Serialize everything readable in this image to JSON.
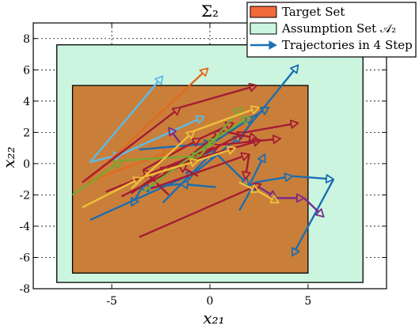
{
  "chart_data": {
    "type": "line",
    "title": "Σ₂",
    "xlabel": "x₂₁",
    "ylabel": "x₂₂",
    "xlim": [
      -9,
      9
    ],
    "ylim": [
      -8,
      9
    ],
    "xticks": [
      -5,
      0,
      5
    ],
    "yticks": [
      -8,
      -6,
      -4,
      -2,
      0,
      2,
      4,
      6,
      8
    ],
    "xtick_labels": [
      "-5",
      "0",
      "5"
    ],
    "ytick_labels": [
      "-8",
      "-6",
      "-4",
      "-2",
      "0",
      "2",
      "4",
      "6",
      "8"
    ],
    "grid": true,
    "legend_position": "top-right",
    "regions": [
      {
        "name": "Assumption Set 𝒜₂",
        "x": [
          -7.8,
          7.8
        ],
        "y": [
          -7.6,
          7.6
        ],
        "color": "#ccf5e0"
      },
      {
        "name": "Target Set",
        "x": [
          -7,
          5
        ],
        "y": [
          -7,
          5
        ],
        "color": "#c97f3a"
      }
    ],
    "legend": [
      {
        "label": "Target Set",
        "kind": "patch",
        "color": "#f2693a"
      },
      {
        "label": "Assumption Set 𝒜₂",
        "kind": "patch",
        "color": "#ccf5e0"
      },
      {
        "label": "Trajectories in 4 Step",
        "kind": "line",
        "color": "#1f6fb5"
      }
    ],
    "series": [
      {
        "color": "#5bbbe6",
        "points": [
          [
            -6.1,
            0.1
          ],
          [
            -2.4,
            5.6
          ]
        ]
      },
      {
        "color": "#5bbbe6",
        "points": [
          [
            -6.1,
            0.1
          ],
          [
            -4.5,
            0.6
          ],
          [
            -0.3,
            3.0
          ]
        ]
      },
      {
        "color": "#e06a1e",
        "points": [
          [
            -6.3,
            -1.2
          ],
          [
            -0.1,
            6.1
          ]
        ]
      },
      {
        "color": "#e06a1e",
        "points": [
          [
            -6.3,
            -1.2
          ],
          [
            -2.0,
            0.8
          ],
          [
            2.0,
            2.3
          ]
        ]
      },
      {
        "color": "#1a6eb0",
        "points": [
          [
            -6.1,
            -3.6
          ],
          [
            -0.8,
            -0.6
          ],
          [
            1.6,
            1.8
          ],
          [
            4.5,
            6.3
          ]
        ]
      },
      {
        "color": "#1a6eb0",
        "points": [
          [
            -3.6,
            0.9
          ],
          [
            0.1,
            1.3
          ],
          [
            2.2,
            3.0
          ],
          [
            3.0,
            3.6
          ]
        ]
      },
      {
        "color": "#1a6eb0",
        "points": [
          [
            -2.4,
            -2.5
          ],
          [
            0.2,
            0.8
          ],
          [
            2.0,
            -1.4
          ],
          [
            2.8,
            0.6
          ]
        ]
      },
      {
        "color": "#1a6eb0",
        "points": [
          [
            1.5,
            -3.0
          ],
          [
            2.3,
            -1.2
          ],
          [
            4.2,
            -0.8
          ],
          [
            6.3,
            -1.0
          ],
          [
            4.2,
            -5.9
          ]
        ]
      },
      {
        "color": "#1a6eb0",
        "points": [
          [
            0.3,
            -1.5
          ],
          [
            -1.5,
            -1.3
          ],
          [
            -3.5,
            -1.6
          ],
          [
            -4.0,
            -2.7
          ]
        ]
      },
      {
        "color": "#a51c35",
        "points": [
          [
            -3.6,
            -4.7
          ],
          [
            2.6,
            -1.3
          ]
        ]
      },
      {
        "color": "#a51c35",
        "points": [
          [
            -4.5,
            -2.1
          ],
          [
            1.8,
            2.0
          ],
          [
            4.5,
            2.6
          ]
        ]
      },
      {
        "color": "#a51c35",
        "points": [
          [
            -6.5,
            -1.2
          ],
          [
            -1.5,
            3.6
          ],
          [
            2.4,
            5.0
          ]
        ]
      },
      {
        "color": "#a51c35",
        "points": [
          [
            -5.3,
            -1.8
          ],
          [
            0.5,
            1.2
          ],
          [
            3.6,
            1.6
          ]
        ]
      },
      {
        "color": "#a51c35",
        "points": [
          [
            -3.0,
            -1.6
          ],
          [
            2.0,
            0.6
          ],
          [
            1.8,
            -1.0
          ]
        ]
      },
      {
        "color": "#a51c35",
        "points": [
          [
            -4.0,
            -1.9
          ],
          [
            -2.1,
            -0.2
          ],
          [
            2.6,
            1.5
          ]
        ]
      },
      {
        "color": "#a51c35",
        "points": [
          [
            -2.1,
            -2.0
          ],
          [
            -3.4,
            -0.4
          ],
          [
            -0.5,
            1.6
          ],
          [
            1.2,
            2.6
          ]
        ]
      },
      {
        "color": "#a51c35",
        "points": [
          [
            -0.6,
            -0.8
          ],
          [
            -1.6,
            -0.1
          ],
          [
            0.6,
            2.1
          ],
          [
            2.4,
            1.6
          ]
        ]
      },
      {
        "color": "#7a2a8c",
        "points": [
          [
            2.5,
            -1.5
          ],
          [
            3.4,
            -2.2
          ],
          [
            4.8,
            -2.2
          ],
          [
            5.8,
            -3.4
          ]
        ]
      },
      {
        "color": "#7a2a8c",
        "points": [
          [
            -1.5,
            1.3
          ],
          [
            -2.1,
            2.3
          ]
        ]
      },
      {
        "color": "#76a830",
        "points": [
          [
            -7.0,
            -2.0
          ],
          [
            -4.5,
            0.2
          ],
          [
            -0.5,
            0.5
          ],
          [
            1.6,
            3.6
          ]
        ]
      },
      {
        "color": "#76a830",
        "points": [
          [
            -3.4,
            -1.8
          ],
          [
            0.3,
            1.6
          ],
          [
            2.0,
            3.0
          ]
        ]
      },
      {
        "color": "#eec039",
        "points": [
          [
            -6.5,
            -2.8
          ],
          [
            -3.5,
            -0.9
          ],
          [
            -0.6,
            0.2
          ],
          [
            1.3,
            1.0
          ]
        ]
      },
      {
        "color": "#eec039",
        "points": [
          [
            -4.0,
            -1.6
          ],
          [
            -0.8,
            2.1
          ],
          [
            2.5,
            3.6
          ]
        ]
      },
      {
        "color": "#eec039",
        "points": [
          [
            1.5,
            -1.2
          ],
          [
            2.5,
            -1.8
          ],
          [
            3.5,
            -2.5
          ]
        ]
      }
    ]
  }
}
